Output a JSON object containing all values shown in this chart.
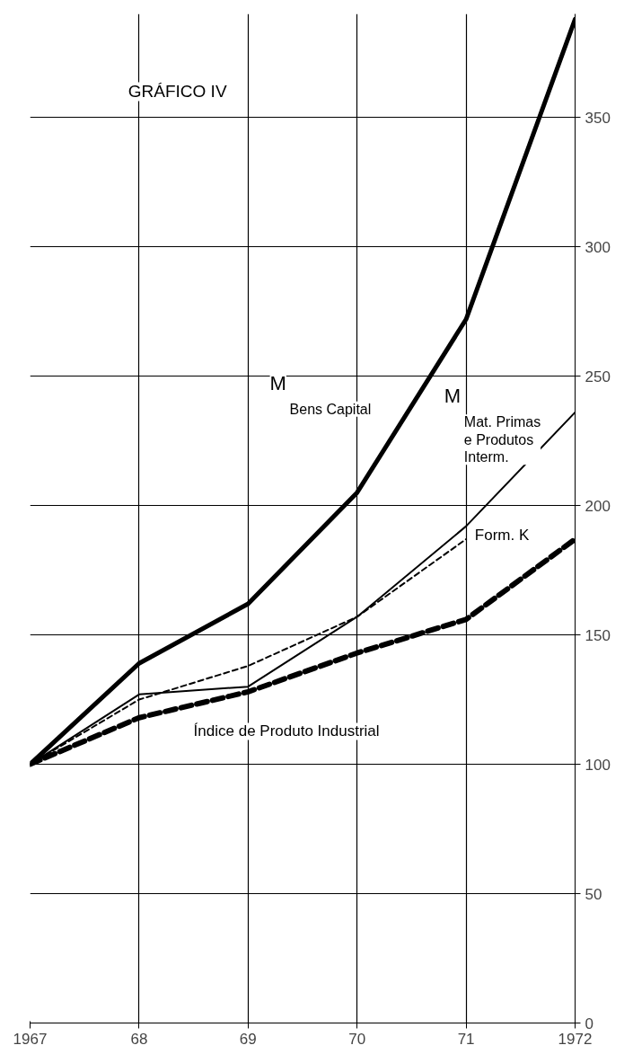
{
  "chart_data": {
    "type": "line",
    "title": "GRÁFICO IV",
    "x": [
      1967,
      1968,
      1969,
      1970,
      1971,
      1972
    ],
    "series": [
      {
        "name": "M$_{Bens Capital}$",
        "color": "#000000",
        "line_style": "solid",
        "values": [
          100,
          139,
          162,
          205,
          272,
          388
        ]
      },
      {
        "name": "M$_{Mat. Primas\ne Produtos\nInterm.}$",
        "color": "#000000",
        "line_style": "solid",
        "values": [
          100,
          127,
          130,
          157,
          192,
          236
        ]
      },
      {
        "name": "Form. K",
        "color": "#000000",
        "line_style": "dashed",
        "values": [
          100,
          125,
          138,
          157,
          187,
          null
        ]
      },
      {
        "name": "Índice de Produto Industrial",
        "color": "#000000",
        "line_style": "dashed",
        "values": [
          100,
          118,
          128,
          143,
          156,
          187
        ]
      }
    ],
    "xlim": [
      1967,
      1972
    ],
    "ylim": [
      0,
      390
    ],
    "xticks": [
      1967,
      {
        "value": 1968,
        "label": "68"
      },
      {
        "value": 1969,
        "label": "69"
      },
      {
        "value": 1970,
        "label": "70"
      },
      {
        "value": 1971,
        "label": "71"
      },
      1972
    ],
    "yticks": [
      0,
      50,
      100,
      150,
      200,
      250,
      300,
      350
    ],
    "grid": true,
    "marker": "none"
  }
}
